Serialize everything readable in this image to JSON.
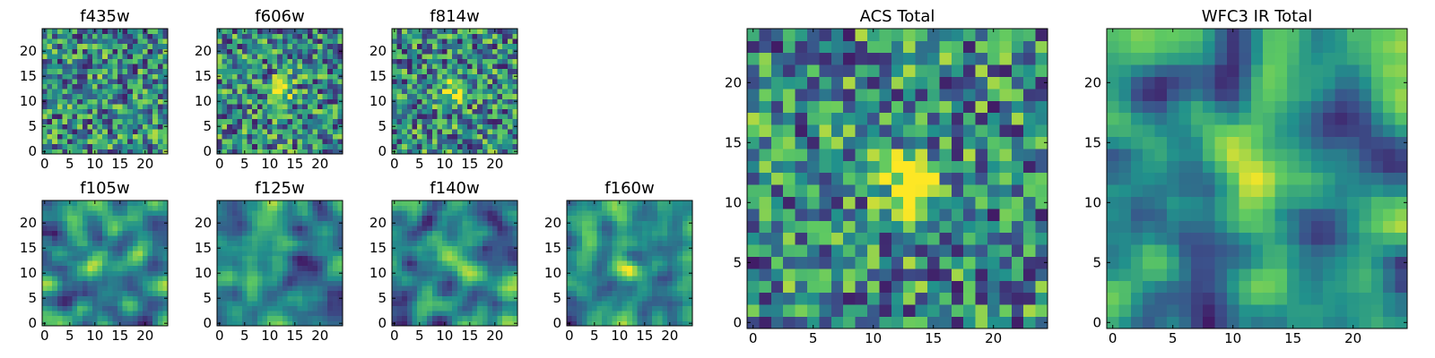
{
  "colormap": "viridis",
  "colors": [
    "#440154",
    "#3b528b",
    "#21918c",
    "#5ec962",
    "#fde725"
  ],
  "chart_data": [
    {
      "type": "heatmap",
      "title": "f435w",
      "grid_size": 25,
      "xticks": [
        "0",
        "5",
        "10",
        "15",
        "20"
      ],
      "yticks": [
        "0",
        "5",
        "10",
        "15",
        "20"
      ],
      "xlim": [
        -0.5,
        24.5
      ],
      "ylim": [
        -0.5,
        24.5
      ],
      "source_center": [
        12,
        12
      ],
      "source_strength": 0.15,
      "texture": "pixel-noise",
      "grid": false,
      "colorbar": false
    },
    {
      "type": "heatmap",
      "title": "f606w",
      "grid_size": 25,
      "xticks": [
        "0",
        "5",
        "10",
        "15",
        "20"
      ],
      "yticks": [
        "0",
        "5",
        "10",
        "15",
        "20"
      ],
      "xlim": [
        -0.5,
        24.5
      ],
      "ylim": [
        -0.5,
        24.5
      ],
      "source_center": [
        12,
        12
      ],
      "source_strength": 0.55,
      "texture": "pixel-noise",
      "grid": false,
      "colorbar": false
    },
    {
      "type": "heatmap",
      "title": "f814w",
      "grid_size": 25,
      "xticks": [
        "0",
        "5",
        "10",
        "15",
        "20"
      ],
      "yticks": [
        "0",
        "5",
        "10",
        "15",
        "20"
      ],
      "xlim": [
        -0.5,
        24.5
      ],
      "ylim": [
        -0.5,
        24.5
      ],
      "source_center": [
        12,
        12
      ],
      "source_strength": 0.5,
      "texture": "pixel-noise",
      "grid": false,
      "colorbar": false
    },
    {
      "type": "heatmap",
      "title": "f105w",
      "grid_size": 25,
      "xticks": [
        "0",
        "5",
        "10",
        "15",
        "20"
      ],
      "yticks": [
        "0",
        "5",
        "10",
        "15",
        "20"
      ],
      "xlim": [
        -0.5,
        24.5
      ],
      "ylim": [
        -0.5,
        24.5
      ],
      "source_center": [
        11,
        13
      ],
      "source_strength": 0.3,
      "texture": "correlated-noise",
      "grid": false,
      "colorbar": false
    },
    {
      "type": "heatmap",
      "title": "f125w",
      "grid_size": 25,
      "xticks": [
        "0",
        "5",
        "10",
        "15",
        "20"
      ],
      "yticks": [
        "0",
        "5",
        "10",
        "15",
        "20"
      ],
      "xlim": [
        -0.5,
        24.5
      ],
      "ylim": [
        -0.5,
        24.5
      ],
      "source_center": [
        12,
        12
      ],
      "source_strength": 0.1,
      "texture": "correlated-noise",
      "grid": false,
      "colorbar": false
    },
    {
      "type": "heatmap",
      "title": "f140w",
      "grid_size": 25,
      "xticks": [
        "0",
        "5",
        "10",
        "15",
        "20"
      ],
      "yticks": [
        "0",
        "5",
        "10",
        "15",
        "20"
      ],
      "xlim": [
        -0.5,
        24.5
      ],
      "ylim": [
        -0.5,
        24.5
      ],
      "source_center": [
        12,
        12
      ],
      "source_strength": 0.2,
      "texture": "correlated-noise",
      "grid": false,
      "colorbar": false
    },
    {
      "type": "heatmap",
      "title": "f160w",
      "grid_size": 25,
      "xticks": [
        "0",
        "5",
        "10",
        "15",
        "20"
      ],
      "yticks": [
        "0",
        "5",
        "10",
        "15",
        "20"
      ],
      "xlim": [
        -0.5,
        24.5
      ],
      "ylim": [
        -0.5,
        24.5
      ],
      "source_center": [
        12,
        11
      ],
      "source_strength": 0.45,
      "texture": "correlated-noise",
      "grid": false,
      "colorbar": false
    },
    {
      "type": "heatmap",
      "title": "ACS Total",
      "grid_size": 25,
      "xticks": [
        "0",
        "5",
        "10",
        "15",
        "20"
      ],
      "yticks": [
        "0",
        "5",
        "10",
        "15",
        "20"
      ],
      "xlim": [
        -0.5,
        24.5
      ],
      "ylim": [
        -0.5,
        24.5
      ],
      "source_center": [
        13,
        12
      ],
      "source_strength": 0.65,
      "texture": "pixel-noise",
      "grid": false,
      "colorbar": false
    },
    {
      "type": "heatmap",
      "title": "WFC3 IR Total",
      "grid_size": 25,
      "xticks": [
        "0",
        "5",
        "10",
        "15",
        "20"
      ],
      "yticks": [
        "0",
        "5",
        "10",
        "15",
        "20"
      ],
      "xlim": [
        -0.5,
        24.5
      ],
      "ylim": [
        -0.5,
        24.5
      ],
      "source_center": [
        12,
        12
      ],
      "source_strength": 0.55,
      "texture": "correlated-noise",
      "grid": false,
      "colorbar": false
    }
  ]
}
